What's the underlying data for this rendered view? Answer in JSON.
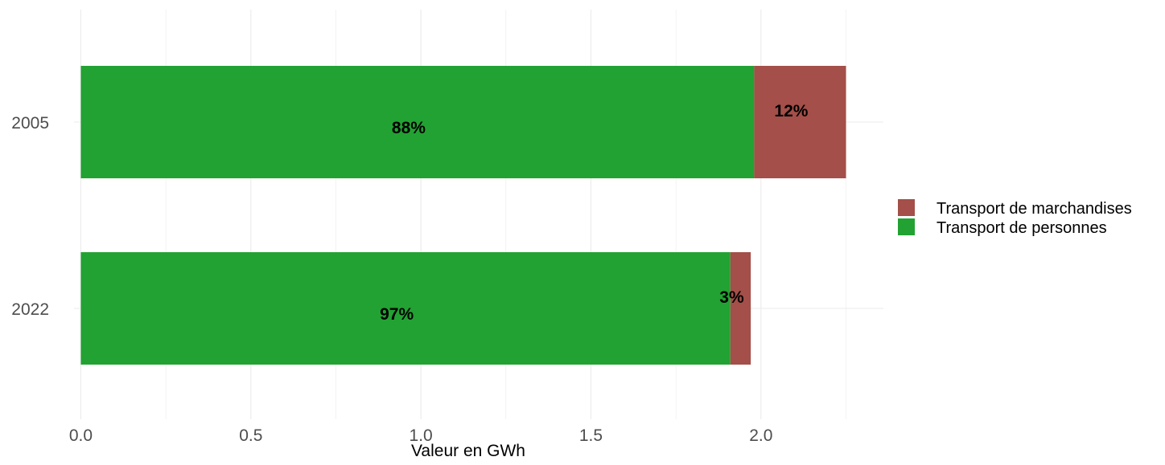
{
  "chart_data": {
    "type": "bar",
    "orientation": "horizontal",
    "stacked": true,
    "categories": [
      "2005",
      "2022"
    ],
    "series": [
      {
        "name": "Transport de personnes",
        "color": "#22a232",
        "values": [
          1.98,
          1.91
        ],
        "labels": [
          "88%",
          "97%"
        ]
      },
      {
        "name": "Transport de marchandises",
        "color": "#a44f49",
        "values": [
          0.27,
          0.06
        ],
        "labels": [
          "12%",
          "3%"
        ]
      }
    ],
    "xlabel": "Valeur en GWh",
    "ylabel": "",
    "xlim": [
      -0.02,
      2.36
    ],
    "xticks": [
      0.0,
      0.5,
      1.0,
      1.5,
      2.0
    ],
    "xtick_labels": [
      "0.0",
      "0.5",
      "1.0",
      "1.5",
      "2.0"
    ],
    "grid": true,
    "legend": {
      "position": "right",
      "entries": [
        "Transport de marchandises",
        "Transport de personnes"
      ]
    }
  }
}
